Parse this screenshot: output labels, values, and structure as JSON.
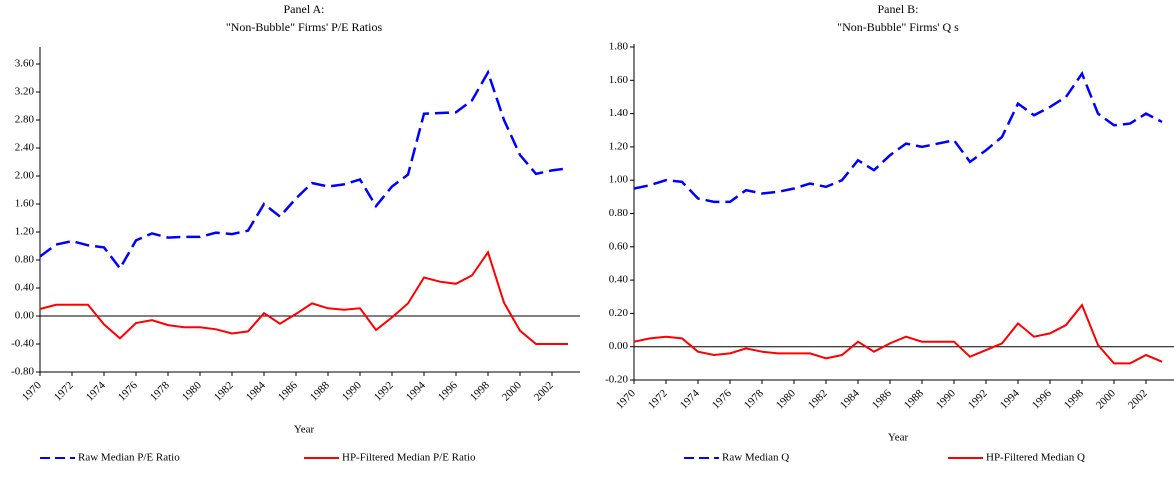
{
  "chart_data": [
    {
      "type": "line",
      "title": [
        "Panel A:",
        "\"Non-Bubble\" Firms' P/E Ratios"
      ],
      "x_label": "Year",
      "x": [
        1970,
        1971,
        1972,
        1973,
        1974,
        1975,
        1976,
        1977,
        1978,
        1979,
        1980,
        1981,
        1982,
        1983,
        1984,
        1985,
        1986,
        1987,
        1988,
        1989,
        1990,
        1991,
        1992,
        1993,
        1994,
        1995,
        1996,
        1997,
        1998,
        1999,
        2000,
        2001,
        2002,
        2003
      ],
      "xlim": [
        1970,
        2003
      ],
      "xticks": [
        1970,
        1972,
        1974,
        1976,
        1978,
        1980,
        1982,
        1984,
        1986,
        1988,
        1990,
        1992,
        1994,
        1996,
        1998,
        2000,
        2002
      ],
      "ylim": [
        -0.8,
        3.8
      ],
      "yticks": [
        {
          "value": -0.8,
          "label": "-0.80"
        },
        {
          "value": -0.4,
          "label": "-0.40"
        },
        {
          "value": 0,
          "label": "0.00"
        },
        {
          "value": 0.4,
          "label": "0.40"
        },
        {
          "value": 0.8,
          "label": "0.80"
        },
        {
          "value": 1.2,
          "label": "1.20"
        },
        {
          "value": 1.6,
          "label": "1.60"
        },
        {
          "value": 2.0,
          "label": "2.00"
        },
        {
          "value": 2.4,
          "label": "2.40"
        },
        {
          "value": 2.8,
          "label": "2.80"
        },
        {
          "value": 3.2,
          "label": "3.20"
        },
        {
          "value": 3.6,
          "label": "3.60"
        }
      ],
      "series": [
        {
          "name": "Raw Median P/E Ratio",
          "color": "#0000ff",
          "dashed": true,
          "values": [
            0.85,
            1.02,
            1.07,
            1.01,
            0.98,
            0.68,
            1.08,
            1.18,
            1.12,
            1.13,
            1.13,
            1.19,
            1.17,
            1.22,
            1.6,
            1.42,
            1.68,
            1.9,
            1.85,
            1.88,
            1.95,
            1.57,
            1.85,
            2.02,
            2.89,
            2.9,
            2.91,
            3.08,
            3.48,
            2.8,
            2.3,
            2.03,
            2.08,
            2.11
          ]
        },
        {
          "name": "HP-Filtered Median P/E Ratio",
          "color": "#ff0000",
          "dashed": false,
          "values": [
            0.1,
            0.16,
            0.16,
            0.16,
            -0.12,
            -0.32,
            -0.1,
            -0.06,
            -0.13,
            -0.16,
            -0.16,
            -0.19,
            -0.25,
            -0.22,
            0.04,
            -0.11,
            0.03,
            0.18,
            0.11,
            0.09,
            0.11,
            -0.2,
            -0.02,
            0.18,
            0.55,
            0.49,
            0.46,
            0.58,
            0.91,
            0.19,
            -0.21,
            -0.4,
            -0.4,
            -0.4
          ]
        }
      ]
    },
    {
      "type": "line",
      "title": [
        "Panel B:",
        "\"Non-Bubble\" Firms' Q s"
      ],
      "x_label": "Year",
      "x": [
        1970,
        1971,
        1972,
        1973,
        1974,
        1975,
        1976,
        1977,
        1978,
        1979,
        1980,
        1981,
        1982,
        1983,
        1984,
        1985,
        1986,
        1987,
        1988,
        1989,
        1990,
        1991,
        1992,
        1993,
        1994,
        1995,
        1996,
        1997,
        1998,
        1999,
        2000,
        2001,
        2002,
        2003
      ],
      "xlim": [
        1970,
        2003
      ],
      "xticks": [
        1970,
        1972,
        1974,
        1976,
        1978,
        1980,
        1982,
        1984,
        1986,
        1988,
        1990,
        1992,
        1994,
        1996,
        1998,
        2000,
        2002
      ],
      "ylim": [
        -0.2,
        1.8
      ],
      "yticks": [
        {
          "value": -0.2,
          "label": "-0.20"
        },
        {
          "value": 0,
          "label": "0.00"
        },
        {
          "value": 0.2,
          "label": "0.20"
        },
        {
          "value": 0.4,
          "label": "0.40"
        },
        {
          "value": 0.6,
          "label": "0.60"
        },
        {
          "value": 0.8,
          "label": "0.80"
        },
        {
          "value": 1.0,
          "label": "1.00"
        },
        {
          "value": 1.2,
          "label": "1.20"
        },
        {
          "value": 1.4,
          "label": "1.40"
        },
        {
          "value": 1.6,
          "label": "1.60"
        },
        {
          "value": 1.8,
          "label": "1.80"
        }
      ],
      "series": [
        {
          "name": "Raw Median Q",
          "color": "#0000ff",
          "dashed": true,
          "values": [
            0.95,
            0.97,
            1.0,
            0.99,
            0.89,
            0.87,
            0.87,
            0.94,
            0.92,
            0.93,
            0.95,
            0.98,
            0.96,
            1.0,
            1.12,
            1.06,
            1.15,
            1.22,
            1.2,
            1.22,
            1.24,
            1.11,
            1.18,
            1.26,
            1.46,
            1.39,
            1.44,
            1.5,
            1.64,
            1.4,
            1.33,
            1.34,
            1.4,
            1.35
          ]
        },
        {
          "name": "HP-Filtered Median Q",
          "color": "#ff0000",
          "dashed": false,
          "values": [
            0.03,
            0.05,
            0.06,
            0.05,
            -0.03,
            -0.05,
            -0.04,
            -0.01,
            -0.03,
            -0.04,
            -0.04,
            -0.04,
            -0.07,
            -0.05,
            0.03,
            -0.03,
            0.02,
            0.06,
            0.03,
            0.03,
            0.03,
            -0.06,
            -0.02,
            0.02,
            0.14,
            0.06,
            0.08,
            0.13,
            0.25,
            0.01,
            -0.1,
            -0.1,
            -0.05,
            -0.09
          ]
        }
      ]
    }
  ]
}
